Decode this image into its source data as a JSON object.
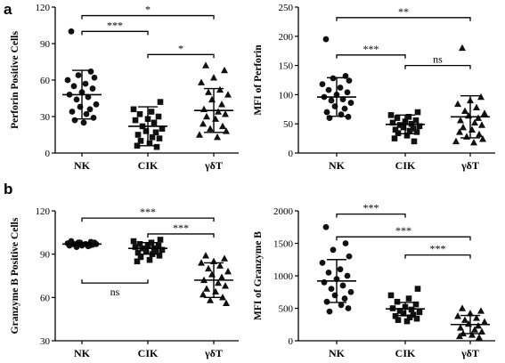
{
  "panels": {
    "a": "a",
    "b": "b"
  },
  "chart_data": [
    {
      "type": "scatter",
      "panel": "a",
      "title": "",
      "xlabel": "",
      "ylabel": "Perforin Positive Cells",
      "categories": [
        "NK",
        "CIK",
        "γδT"
      ],
      "ylim": [
        0,
        120
      ],
      "yticks": [
        0,
        30,
        60,
        90,
        120
      ],
      "markers": [
        "circle",
        "square",
        "triangle"
      ],
      "values": [
        [
          100,
          67,
          64,
          62,
          60,
          57,
          55,
          53,
          50,
          48,
          46,
          44,
          40,
          38,
          36,
          34,
          32,
          29,
          27,
          25
        ],
        [
          42,
          36,
          34,
          32,
          30,
          28,
          27,
          25,
          22,
          20,
          18,
          17,
          15,
          13,
          12,
          10,
          8,
          6,
          5
        ],
        [
          72,
          68,
          62,
          58,
          52,
          50,
          48,
          44,
          40,
          36,
          34,
          32,
          30,
          28,
          24,
          22,
          20,
          18,
          15,
          13
        ]
      ],
      "mean": [
        48,
        22,
        35
      ],
      "sd": [
        20,
        16,
        18
      ],
      "significance": [
        {
          "from": 0,
          "to": 1,
          "label": "***",
          "y": 100
        },
        {
          "from": 0,
          "to": 2,
          "label": "*",
          "y": 113
        },
        {
          "from": 1,
          "to": 2,
          "label": "*",
          "y": 81
        }
      ]
    },
    {
      "type": "scatter",
      "panel": "a",
      "title": "",
      "xlabel": "",
      "ylabel": "MFI of Perforin",
      "categories": [
        "NK",
        "CIK",
        "γδT"
      ],
      "ylim": [
        0,
        250
      ],
      "yticks": [
        0,
        50,
        100,
        150,
        200,
        250
      ],
      "markers": [
        "circle",
        "square",
        "triangle"
      ],
      "values": [
        [
          195,
          132,
          128,
          124,
          118,
          112,
          108,
          104,
          100,
          96,
          92,
          90,
          86,
          80,
          76,
          70,
          66,
          62,
          60
        ],
        [
          70,
          65,
          62,
          60,
          56,
          54,
          52,
          50,
          48,
          46,
          44,
          42,
          40,
          38,
          36,
          34,
          30,
          25,
          20
        ],
        [
          180,
          96,
          90,
          84,
          78,
          72,
          68,
          64,
          60,
          56,
          52,
          48,
          44,
          40,
          36,
          32,
          28,
          24,
          20,
          18
        ]
      ],
      "mean": [
        96,
        49,
        62
      ],
      "sd": [
        33,
        16,
        36
      ],
      "significance": [
        {
          "from": 0,
          "to": 1,
          "label": "***",
          "y": 168
        },
        {
          "from": 0,
          "to": 2,
          "label": "**",
          "y": 232
        },
        {
          "from": 1,
          "to": 2,
          "label": "ns",
          "y": 150
        }
      ]
    },
    {
      "type": "scatter",
      "panel": "b",
      "title": "",
      "xlabel": "",
      "ylabel": "Granzyme B Positive Cells",
      "categories": [
        "NK",
        "CIK",
        "γδT"
      ],
      "ylim": [
        30,
        120
      ],
      "yticks": [
        30,
        60,
        90,
        120
      ],
      "markers": [
        "circle",
        "square",
        "triangle"
      ],
      "values": [
        [
          99,
          98.5,
          98,
          98,
          97.5,
          97,
          97,
          96.5,
          96,
          96,
          95.5,
          95,
          97,
          98,
          96,
          97
        ],
        [
          100,
          99,
          98,
          97,
          96,
          96,
          95,
          94,
          94,
          93,
          92,
          92,
          91,
          90,
          89,
          88,
          86,
          85
        ],
        [
          89,
          87,
          85,
          84,
          82,
          80,
          78,
          76,
          74,
          72,
          70,
          68,
          66,
          64,
          62,
          60,
          58,
          56
        ]
      ],
      "mean": [
        97,
        94,
        72
      ],
      "sd": [
        1,
        4,
        12
      ],
      "significance": [
        {
          "from": 0,
          "to": 2,
          "label": "***",
          "y": 115
        },
        {
          "from": 1,
          "to": 2,
          "label": "***",
          "y": 104
        },
        {
          "from": 0,
          "to": 1,
          "label": "ns",
          "y": 70,
          "below": true
        }
      ]
    },
    {
      "type": "scatter",
      "panel": "b",
      "title": "",
      "xlabel": "",
      "ylabel": "MFI of Granzyme B",
      "categories": [
        "NK",
        "CIK",
        "γδT"
      ],
      "ylim": [
        0,
        2000
      ],
      "yticks": [
        0,
        500,
        1000,
        1500,
        2000
      ],
      "markers": [
        "circle",
        "square",
        "triangle"
      ],
      "values": [
        [
          1750,
          1500,
          1400,
          1300,
          1200,
          1100,
          1050,
          1000,
          950,
          900,
          850,
          800,
          750,
          700,
          650,
          600,
          550,
          500,
          450
        ],
        [
          800,
          700,
          650,
          600,
          560,
          520,
          500,
          480,
          460,
          440,
          420,
          400,
          380,
          360,
          340,
          320,
          300
        ],
        [
          500,
          460,
          420,
          380,
          350,
          320,
          290,
          260,
          230,
          200,
          170,
          140,
          110,
          90,
          70,
          50
        ]
      ],
      "mean": [
        920,
        490,
        250
      ],
      "sd": [
        330,
        100,
        140
      ],
      "significance": [
        {
          "from": 0,
          "to": 1,
          "label": "***",
          "y": 1950
        },
        {
          "from": 0,
          "to": 2,
          "label": "***",
          "y": 1600
        },
        {
          "from": 1,
          "to": 2,
          "label": "***",
          "y": 1320
        }
      ]
    }
  ]
}
